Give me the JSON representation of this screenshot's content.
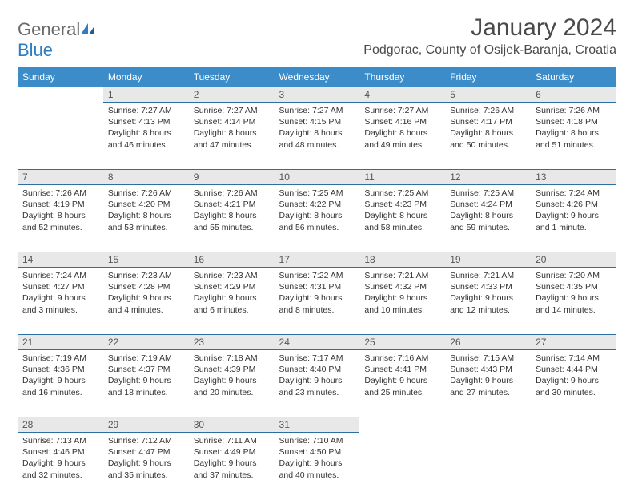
{
  "logo": {
    "part1": "General",
    "part2": "Blue"
  },
  "title": "January 2024",
  "location": "Podgorac, County of Osijek-Baranja, Croatia",
  "day_headers": [
    "Sunday",
    "Monday",
    "Tuesday",
    "Wednesday",
    "Thursday",
    "Friday",
    "Saturday"
  ],
  "colors": {
    "header_bg": "#3b8cc9",
    "header_text": "#ffffff",
    "daynum_bg": "#e8e8e8",
    "border": "#2c6fa3",
    "logo_gray": "#6a6a6a",
    "logo_blue": "#2c7ec4"
  },
  "weeks": [
    [
      null,
      {
        "n": "1",
        "sunrise": "Sunrise: 7:27 AM",
        "sunset": "Sunset: 4:13 PM",
        "daylight": "Daylight: 8 hours and 46 minutes."
      },
      {
        "n": "2",
        "sunrise": "Sunrise: 7:27 AM",
        "sunset": "Sunset: 4:14 PM",
        "daylight": "Daylight: 8 hours and 47 minutes."
      },
      {
        "n": "3",
        "sunrise": "Sunrise: 7:27 AM",
        "sunset": "Sunset: 4:15 PM",
        "daylight": "Daylight: 8 hours and 48 minutes."
      },
      {
        "n": "4",
        "sunrise": "Sunrise: 7:27 AM",
        "sunset": "Sunset: 4:16 PM",
        "daylight": "Daylight: 8 hours and 49 minutes."
      },
      {
        "n": "5",
        "sunrise": "Sunrise: 7:26 AM",
        "sunset": "Sunset: 4:17 PM",
        "daylight": "Daylight: 8 hours and 50 minutes."
      },
      {
        "n": "6",
        "sunrise": "Sunrise: 7:26 AM",
        "sunset": "Sunset: 4:18 PM",
        "daylight": "Daylight: 8 hours and 51 minutes."
      }
    ],
    [
      {
        "n": "7",
        "sunrise": "Sunrise: 7:26 AM",
        "sunset": "Sunset: 4:19 PM",
        "daylight": "Daylight: 8 hours and 52 minutes."
      },
      {
        "n": "8",
        "sunrise": "Sunrise: 7:26 AM",
        "sunset": "Sunset: 4:20 PM",
        "daylight": "Daylight: 8 hours and 53 minutes."
      },
      {
        "n": "9",
        "sunrise": "Sunrise: 7:26 AM",
        "sunset": "Sunset: 4:21 PM",
        "daylight": "Daylight: 8 hours and 55 minutes."
      },
      {
        "n": "10",
        "sunrise": "Sunrise: 7:25 AM",
        "sunset": "Sunset: 4:22 PM",
        "daylight": "Daylight: 8 hours and 56 minutes."
      },
      {
        "n": "11",
        "sunrise": "Sunrise: 7:25 AM",
        "sunset": "Sunset: 4:23 PM",
        "daylight": "Daylight: 8 hours and 58 minutes."
      },
      {
        "n": "12",
        "sunrise": "Sunrise: 7:25 AM",
        "sunset": "Sunset: 4:24 PM",
        "daylight": "Daylight: 8 hours and 59 minutes."
      },
      {
        "n": "13",
        "sunrise": "Sunrise: 7:24 AM",
        "sunset": "Sunset: 4:26 PM",
        "daylight": "Daylight: 9 hours and 1 minute."
      }
    ],
    [
      {
        "n": "14",
        "sunrise": "Sunrise: 7:24 AM",
        "sunset": "Sunset: 4:27 PM",
        "daylight": "Daylight: 9 hours and 3 minutes."
      },
      {
        "n": "15",
        "sunrise": "Sunrise: 7:23 AM",
        "sunset": "Sunset: 4:28 PM",
        "daylight": "Daylight: 9 hours and 4 minutes."
      },
      {
        "n": "16",
        "sunrise": "Sunrise: 7:23 AM",
        "sunset": "Sunset: 4:29 PM",
        "daylight": "Daylight: 9 hours and 6 minutes."
      },
      {
        "n": "17",
        "sunrise": "Sunrise: 7:22 AM",
        "sunset": "Sunset: 4:31 PM",
        "daylight": "Daylight: 9 hours and 8 minutes."
      },
      {
        "n": "18",
        "sunrise": "Sunrise: 7:21 AM",
        "sunset": "Sunset: 4:32 PM",
        "daylight": "Daylight: 9 hours and 10 minutes."
      },
      {
        "n": "19",
        "sunrise": "Sunrise: 7:21 AM",
        "sunset": "Sunset: 4:33 PM",
        "daylight": "Daylight: 9 hours and 12 minutes."
      },
      {
        "n": "20",
        "sunrise": "Sunrise: 7:20 AM",
        "sunset": "Sunset: 4:35 PM",
        "daylight": "Daylight: 9 hours and 14 minutes."
      }
    ],
    [
      {
        "n": "21",
        "sunrise": "Sunrise: 7:19 AM",
        "sunset": "Sunset: 4:36 PM",
        "daylight": "Daylight: 9 hours and 16 minutes."
      },
      {
        "n": "22",
        "sunrise": "Sunrise: 7:19 AM",
        "sunset": "Sunset: 4:37 PM",
        "daylight": "Daylight: 9 hours and 18 minutes."
      },
      {
        "n": "23",
        "sunrise": "Sunrise: 7:18 AM",
        "sunset": "Sunset: 4:39 PM",
        "daylight": "Daylight: 9 hours and 20 minutes."
      },
      {
        "n": "24",
        "sunrise": "Sunrise: 7:17 AM",
        "sunset": "Sunset: 4:40 PM",
        "daylight": "Daylight: 9 hours and 23 minutes."
      },
      {
        "n": "25",
        "sunrise": "Sunrise: 7:16 AM",
        "sunset": "Sunset: 4:41 PM",
        "daylight": "Daylight: 9 hours and 25 minutes."
      },
      {
        "n": "26",
        "sunrise": "Sunrise: 7:15 AM",
        "sunset": "Sunset: 4:43 PM",
        "daylight": "Daylight: 9 hours and 27 minutes."
      },
      {
        "n": "27",
        "sunrise": "Sunrise: 7:14 AM",
        "sunset": "Sunset: 4:44 PM",
        "daylight": "Daylight: 9 hours and 30 minutes."
      }
    ],
    [
      {
        "n": "28",
        "sunrise": "Sunrise: 7:13 AM",
        "sunset": "Sunset: 4:46 PM",
        "daylight": "Daylight: 9 hours and 32 minutes."
      },
      {
        "n": "29",
        "sunrise": "Sunrise: 7:12 AM",
        "sunset": "Sunset: 4:47 PM",
        "daylight": "Daylight: 9 hours and 35 minutes."
      },
      {
        "n": "30",
        "sunrise": "Sunrise: 7:11 AM",
        "sunset": "Sunset: 4:49 PM",
        "daylight": "Daylight: 9 hours and 37 minutes."
      },
      {
        "n": "31",
        "sunrise": "Sunrise: 7:10 AM",
        "sunset": "Sunset: 4:50 PM",
        "daylight": "Daylight: 9 hours and 40 minutes."
      },
      null,
      null,
      null
    ]
  ]
}
